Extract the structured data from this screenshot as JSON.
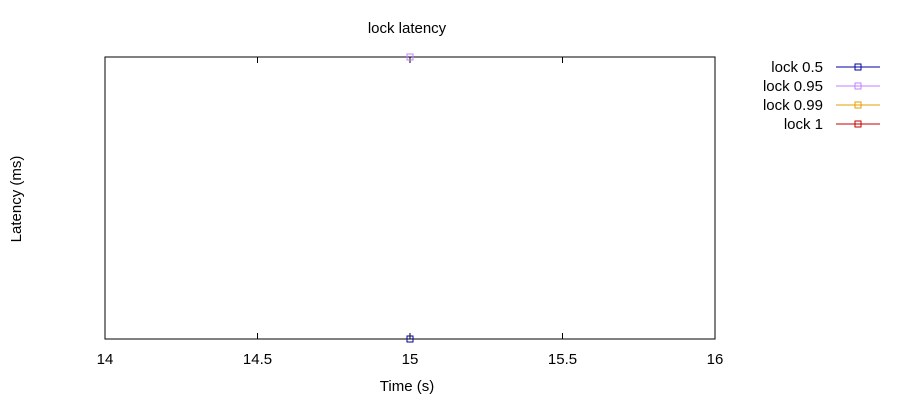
{
  "chart_data": {
    "type": "line",
    "title": "lock latency",
    "xlabel": "Time (s)",
    "ylabel": "Latency (ms)",
    "xlim": [
      14,
      16
    ],
    "ylim": [
      0,
      1
    ],
    "xticks": [
      "14",
      "14.5",
      "15",
      "15.5",
      "16"
    ],
    "xtick_values": [
      14,
      14.5,
      15,
      15.5,
      16
    ],
    "yticks": [],
    "grid": false,
    "legend_position": "outside-top-right",
    "series": [
      {
        "name": "lock 0.5",
        "color": "#0000a0",
        "marker": "square",
        "x": [
          15
        ],
        "y": [
          0
        ]
      },
      {
        "name": "lock 0.95",
        "color": "#c080ff",
        "marker": "square",
        "x": [
          15
        ],
        "y": [
          1
        ]
      },
      {
        "name": "lock 0.99",
        "color": "#e0a000",
        "marker": "square",
        "x": [
          15
        ],
        "y": [
          1
        ]
      },
      {
        "name": "lock 1",
        "color": "#c00000",
        "marker": "square",
        "x": [
          15
        ],
        "y": [
          1
        ]
      }
    ]
  }
}
